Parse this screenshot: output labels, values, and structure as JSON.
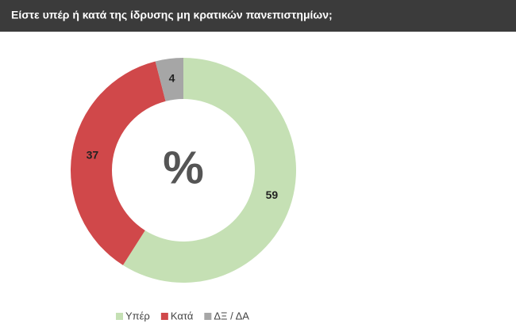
{
  "chart_data": {
    "type": "pie",
    "title": "Είστε υπέρ ή κατά της ίδρυσης μη κρατικών πανεπιστημίων;",
    "center_label": "%",
    "categories": [
      "Υπέρ",
      "Κατά",
      "ΔΞ / ΔΑ"
    ],
    "values": [
      59,
      37,
      4
    ],
    "colors": [
      "#c5e0b4",
      "#d0484a",
      "#a6a6a6"
    ]
  }
}
